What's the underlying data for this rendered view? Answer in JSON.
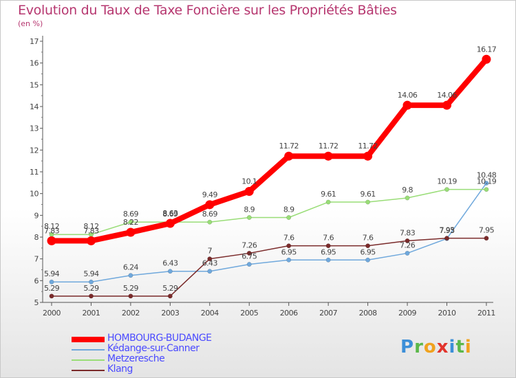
{
  "title": "Evolution du Taux de Taxe Foncière sur les Propriétés Bâties",
  "subtitle": "(en %)",
  "logo": {
    "letters": [
      {
        "ch": "P",
        "color": "#3c8fd8"
      },
      {
        "ch": "r",
        "color": "#5bb84a"
      },
      {
        "ch": "o",
        "color": "#f0a21e"
      },
      {
        "ch": "x",
        "color": "#e2342c"
      },
      {
        "ch": "i",
        "color": "#3c8fd8"
      },
      {
        "ch": "t",
        "color": "#5bb84a"
      },
      {
        "ch": "i",
        "color": "#f0a21e"
      }
    ]
  },
  "chart_data": {
    "type": "line",
    "x": [
      "2000",
      "2001",
      "2002",
      "2003",
      "2004",
      "2005",
      "2006",
      "2007",
      "2008",
      "2009",
      "2010",
      "2011"
    ],
    "ylim": [
      5,
      17
    ],
    "yticks": [
      "5",
      "6",
      "7",
      "8",
      "9",
      "10",
      "11",
      "12",
      "13",
      "14",
      "15",
      "16",
      "17"
    ],
    "grid": false,
    "legend_position": "bottom-left",
    "series": [
      {
        "name": "HOMBOURG-BUDANGE",
        "color": "#ff0000",
        "emphasis": true,
        "values": [
          7.83,
          7.83,
          8.22,
          8.63,
          9.49,
          10.1,
          11.72,
          11.72,
          11.72,
          14.06,
          14.06,
          16.17
        ],
        "labels": [
          "7.83",
          "7.83",
          "8.22",
          "8.63",
          "9.49",
          "10.1",
          "11.72",
          "11.72",
          "11.72",
          "14.06",
          "14.06",
          "16.17"
        ]
      },
      {
        "name": "Kédange-sur-Canner",
        "color": "#6fa8dc",
        "values": [
          5.94,
          5.94,
          6.24,
          6.43,
          6.43,
          6.75,
          6.95,
          6.95,
          6.95,
          7.26,
          7.93,
          10.48
        ],
        "labels": [
          "5.94",
          "5.94",
          "6.24",
          "6.43",
          "6.43",
          "6.75",
          "6.95",
          "6.95",
          "6.95",
          "7.26",
          "7.93",
          "10.48"
        ]
      },
      {
        "name": "Metzeresche",
        "color": "#99dd77",
        "values": [
          8.12,
          8.12,
          8.69,
          8.69,
          8.69,
          8.9,
          8.9,
          9.61,
          9.61,
          9.8,
          10.19,
          10.19
        ],
        "labels": [
          "8.12",
          "8.12",
          "8.69",
          "8.69",
          "8.69",
          "8.9",
          "8.9",
          "9.61",
          "9.61",
          "9.8",
          "10.19",
          "10.19"
        ]
      },
      {
        "name": "Klang",
        "color": "#7a2a2a",
        "values": [
          5.29,
          5.29,
          5.29,
          5.29,
          7,
          7.26,
          7.6,
          7.6,
          7.6,
          7.83,
          7.95,
          7.95
        ],
        "labels": [
          "5.29",
          "5.29",
          "5.29",
          "5.29",
          "7",
          "7.26",
          "7.6",
          "7.6",
          "7.6",
          "7.83",
          "7.95",
          "7.95"
        ]
      }
    ]
  }
}
